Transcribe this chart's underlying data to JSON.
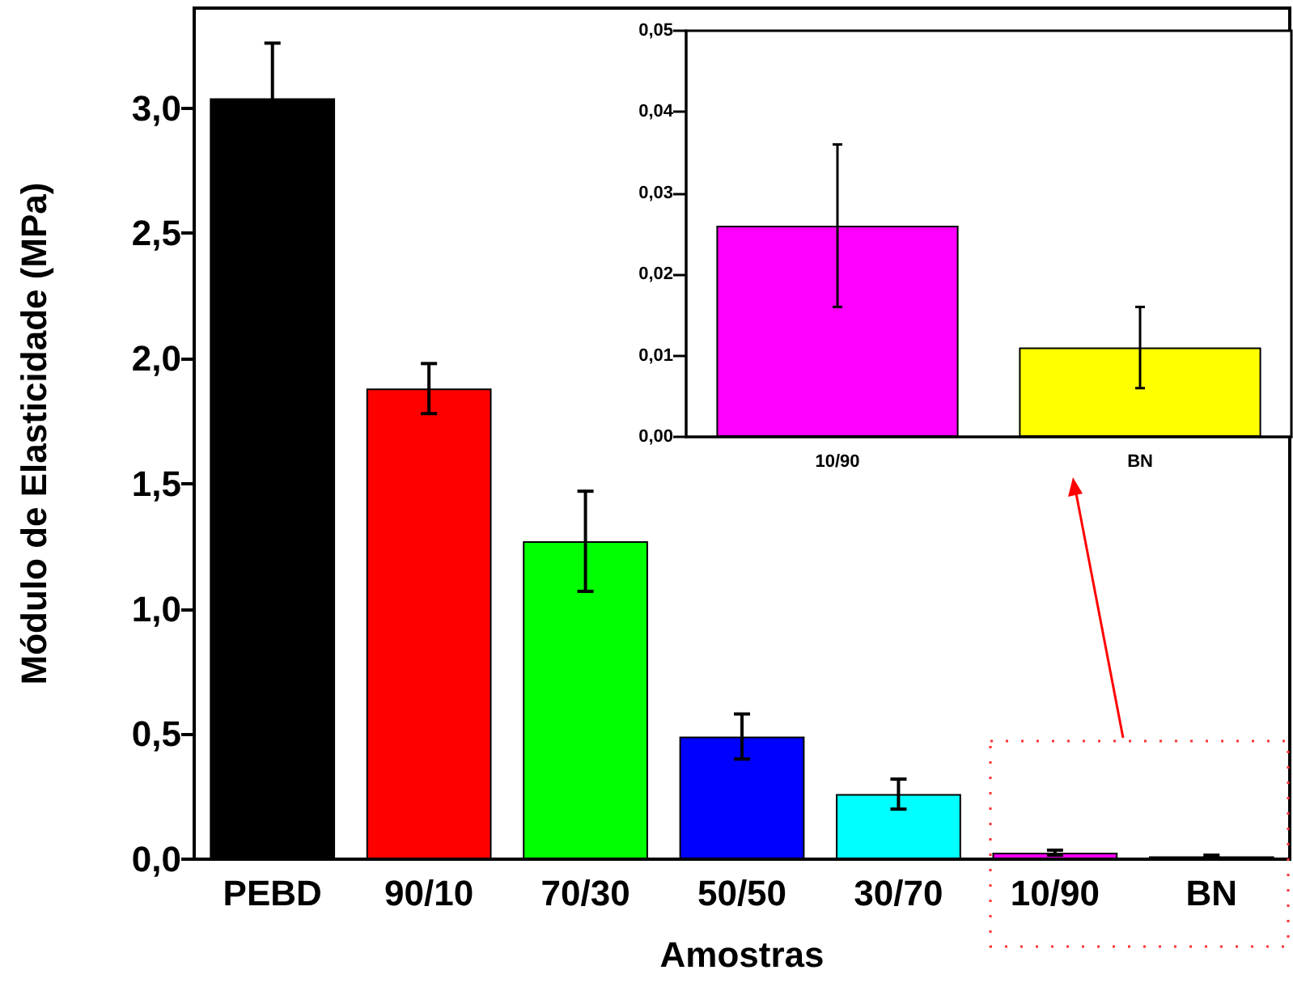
{
  "chart_data": [
    {
      "type": "bar",
      "xlabel": "Amostras",
      "ylabel": "Módulo de Elasticidade (MPa)",
      "categories": [
        "PEBD",
        "90/10",
        "70/30",
        "50/50",
        "30/70",
        "10/90",
        "BN"
      ],
      "values": [
        3.04,
        1.88,
        1.27,
        0.49,
        0.26,
        0.026,
        0.011
      ],
      "errors": [
        0.22,
        0.1,
        0.2,
        0.09,
        0.06,
        0.01,
        0.005
      ],
      "colors": [
        "#000000",
        "#ff0000",
        "#00ff00",
        "#0000ff",
        "#00ffff",
        "#ff00ff",
        "#ffff00"
      ],
      "ylim": [
        0,
        3.4
      ],
      "yticks": [
        {
          "value": 0,
          "label": "0,0"
        },
        {
          "value": 0.5,
          "label": "0,5"
        },
        {
          "value": 1,
          "label": "1,0"
        },
        {
          "value": 1.5,
          "label": "1,5"
        },
        {
          "value": 2,
          "label": "2,0"
        },
        {
          "value": 2.5,
          "label": "2,5"
        },
        {
          "value": 3,
          "label": "3,0"
        }
      ],
      "grid": false
    },
    {
      "type": "bar",
      "categories": [
        "10/90",
        "BN"
      ],
      "values": [
        0.026,
        0.011
      ],
      "errors": [
        0.01,
        0.005
      ],
      "colors": [
        "#ff00ff",
        "#ffff00"
      ],
      "ylim": [
        0,
        0.05
      ],
      "yticks": [
        {
          "value": 0,
          "label": "0,00"
        },
        {
          "value": 0.01,
          "label": "0,01"
        },
        {
          "value": 0.02,
          "label": "0,02"
        },
        {
          "value": 0.03,
          "label": "0,03"
        },
        {
          "value": 0.04,
          "label": "0,04"
        },
        {
          "value": 0.05,
          "label": "0,05"
        }
      ],
      "grid": false
    }
  ]
}
